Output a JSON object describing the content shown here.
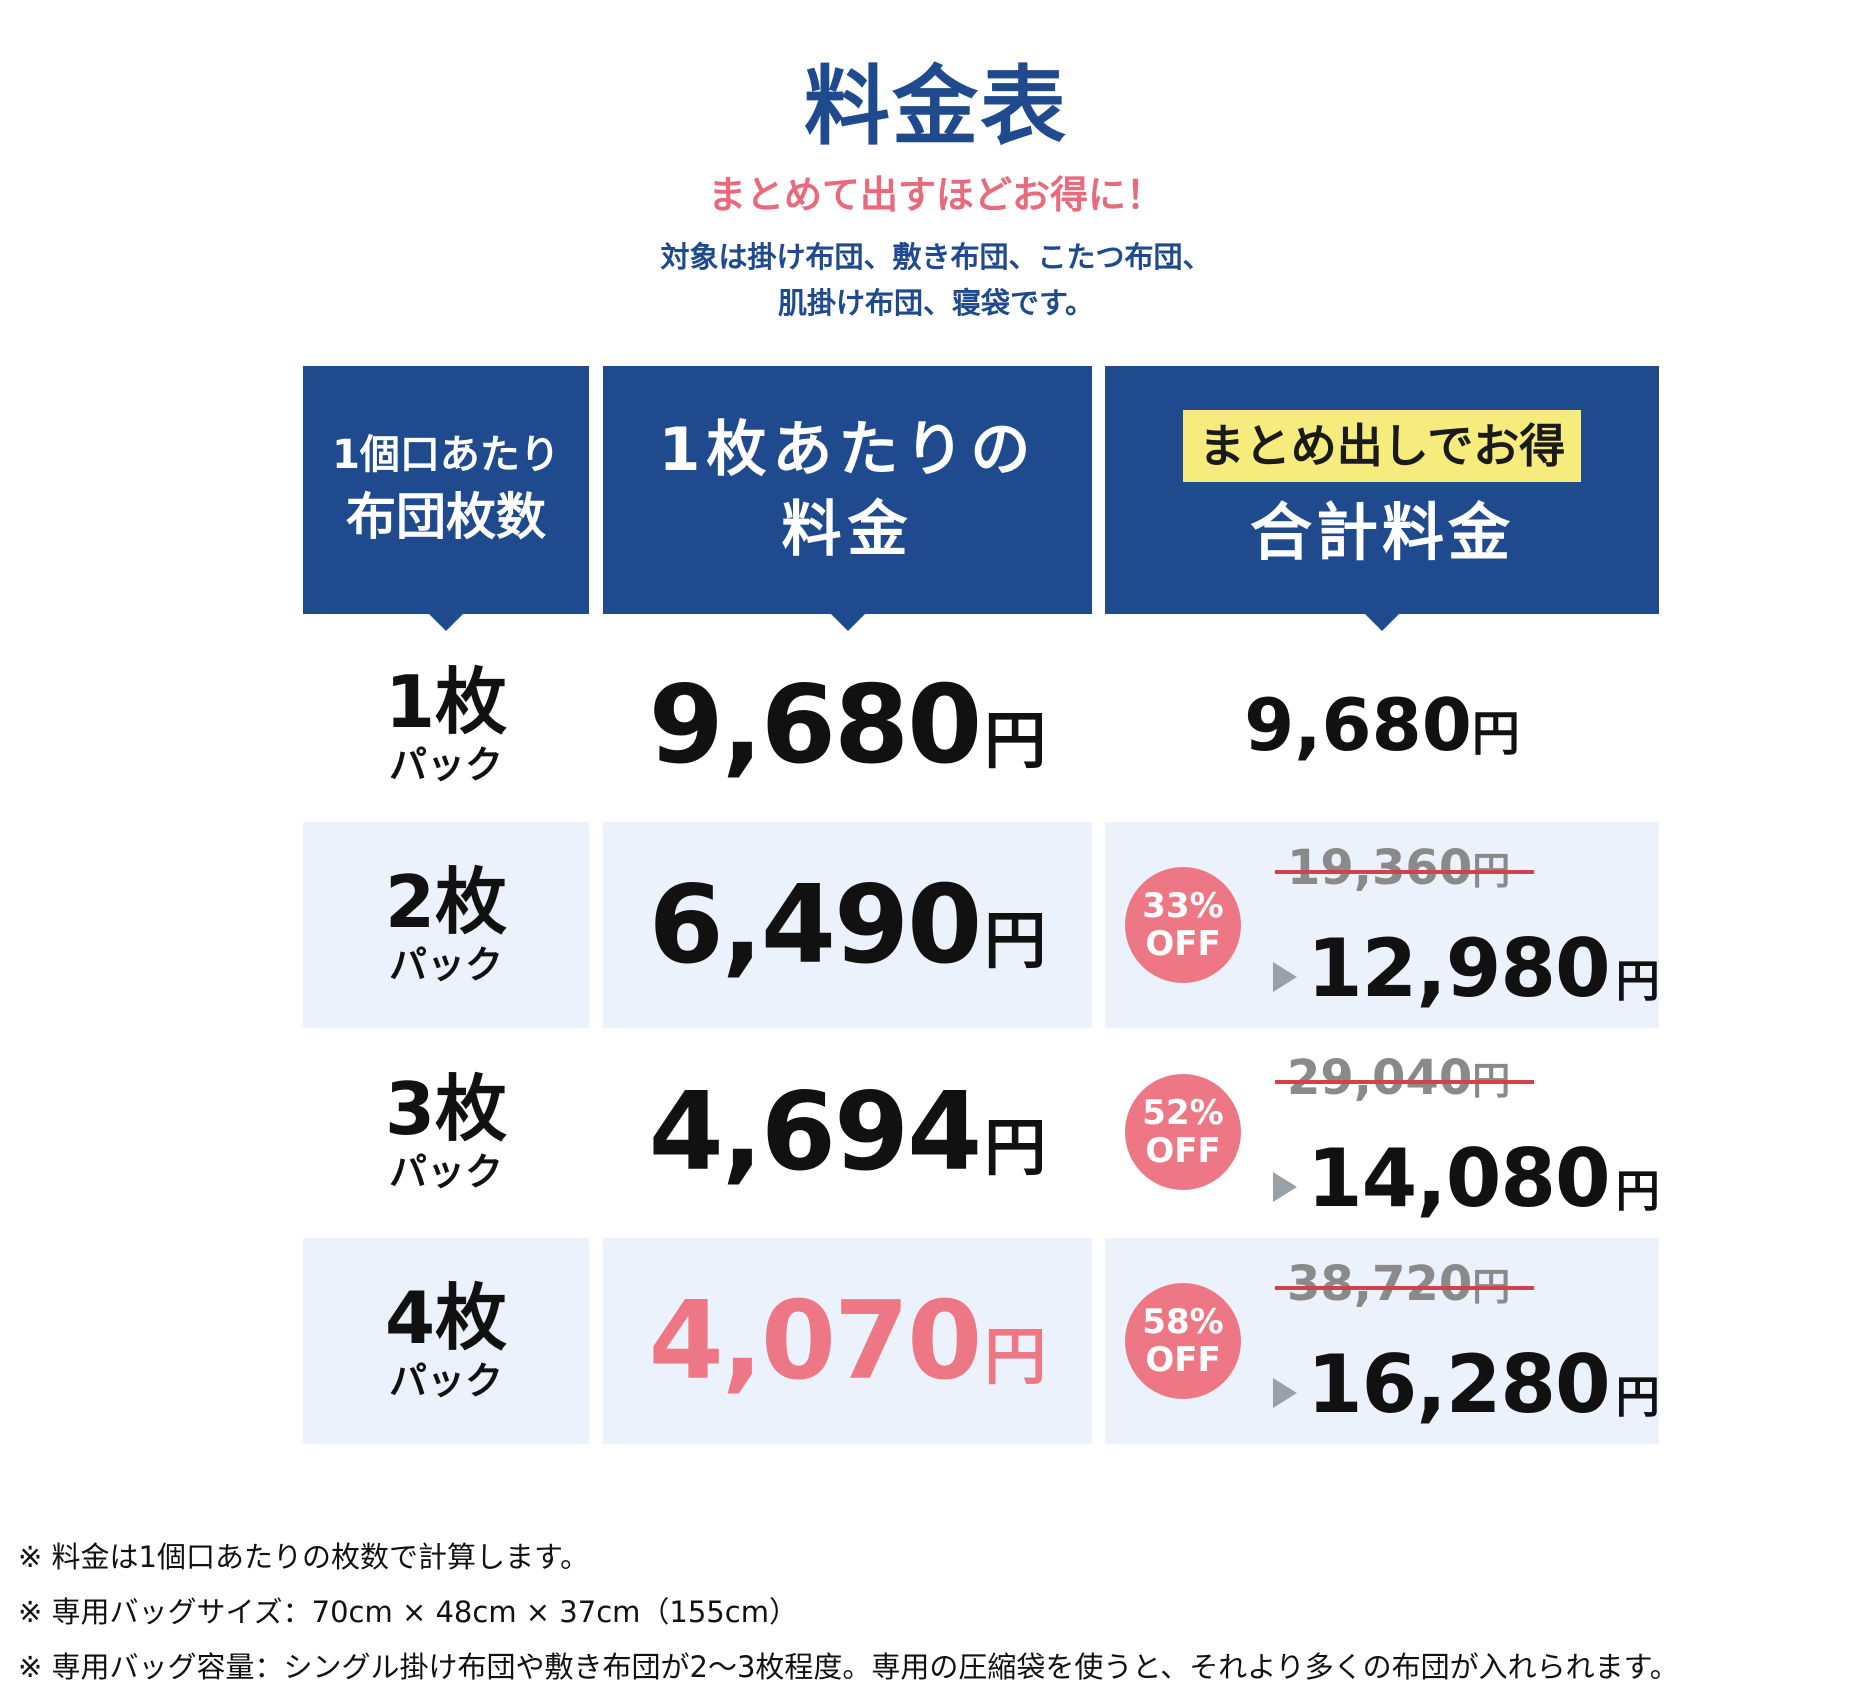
{
  "header": {
    "title": "料金表",
    "subtitle": "まとめて出すほどお得に！",
    "desc_line1": "対象は掛け布団、敷き布団、こたつ布団、",
    "desc_line2": "肌掛け布団、寝袋です。"
  },
  "table": {
    "headers": {
      "col1_line1": "1個口あたり",
      "col1_line2": "布団枚数",
      "col2_line1": "1枚あたりの",
      "col2_line2": "料金",
      "col3_badge": "まとめ出しでお得",
      "col3_line2": "合計料金"
    },
    "yen": "円",
    "pack": "パック",
    "off": "OFF",
    "rows": [
      {
        "count": "1枚",
        "unit_price": "9,680",
        "total": "9,680"
      },
      {
        "count": "2枚",
        "unit_price": "6,490",
        "discount": "33%",
        "original": "19,360",
        "total": "12,980"
      },
      {
        "count": "3枚",
        "unit_price": "4,694",
        "discount": "52%",
        "original": "29,040",
        "total": "14,080"
      },
      {
        "count": "4枚",
        "unit_price": "4,070",
        "discount": "58%",
        "original": "38,720",
        "total": "16,280"
      }
    ]
  },
  "notes": [
    "※ 料金は1個口あたりの枚数で計算します。",
    "※ 専用バッグサイズ：70cm × 48cm × 37cm（155cm）",
    "※ 専用バッグ容量：シングル掛け布団や敷き布団が2～3枚程度。専用の圧縮袋を使うと、それより多くの布団が入れられます。"
  ],
  "colors": {
    "navy": "#1f4a8e",
    "pink": "#ee7785",
    "badge_yellow": "#f6ec7e",
    "row_shade": "#ebf2fb"
  }
}
